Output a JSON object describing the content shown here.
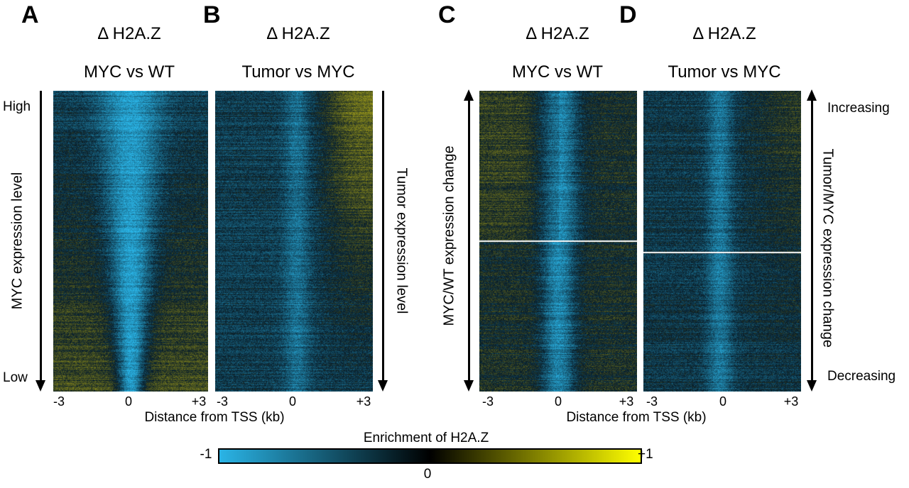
{
  "chart_data": {
    "type": "heatmap",
    "panels": [
      {
        "letter": "A",
        "title_line1": "Δ H2A.Z",
        "title_line2": "MYC vs WT",
        "row_axis": "MYC expression level",
        "row_top": "High",
        "row_bottom": "Low",
        "x_ticks": [
          "-3",
          "0",
          "+3"
        ]
      },
      {
        "letter": "B",
        "title_line1": "Δ H2A.Z",
        "title_line2": "Tumor vs MYC",
        "row_axis": "Tumor expression level",
        "x_ticks": [
          "-3",
          "0",
          "+3"
        ]
      },
      {
        "letter": "C",
        "title_line1": "Δ H2A.Z",
        "title_line2": "MYC vs WT",
        "row_axis": "MYC/WT expression change",
        "x_ticks": [
          "-3",
          "0",
          "+3"
        ]
      },
      {
        "letter": "D",
        "title_line1": "Δ H2A.Z",
        "title_line2": "Tumor vs MYC",
        "row_axis": "Tumor/MYC expression change",
        "row_top": "Increasing",
        "row_bottom": "Decreasing",
        "x_ticks": [
          "-3",
          "0",
          "+3"
        ]
      }
    ],
    "xlabel": "Distance from TSS (kb)",
    "xlim": [
      -3,
      3
    ],
    "colorbar": {
      "title": "Enrichment of H2A.Z",
      "min_label": "-1",
      "mid_label": "0",
      "max_label": "+1",
      "range": [
        -1,
        1
      ],
      "colors": [
        "#2ab4e6",
        "#000000",
        "#ffff00"
      ]
    }
  }
}
